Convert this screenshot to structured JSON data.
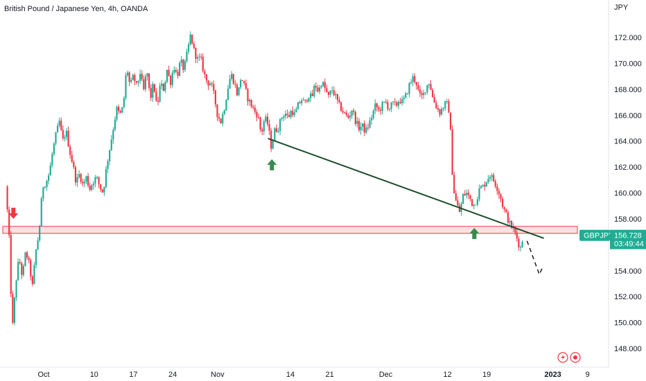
{
  "header": {
    "title": "British Pound / Japanese Yen, 4h, OANDA",
    "currency": "JPY"
  },
  "price_tag": {
    "symbol": "GBPJPY",
    "price": "156.728",
    "countdown": "03:49:44"
  },
  "icons": [
    "flash-icon",
    "record-icon"
  ],
  "colors": {
    "up": "#22ab94",
    "down": "#f23645",
    "trendline": "#1b4d2b",
    "zone_fill": "#f9c7cb",
    "zone_border": "#f23645",
    "arrow_up": "#3a8a4d",
    "arrow_down": "#f23645",
    "tag_bg": "#22ab94"
  },
  "chart_data": {
    "type": "candlestick",
    "title": "British Pound / Japanese Yen, 4h, OANDA",
    "y_unit": "JPY",
    "ylim": [
      147.0,
      173.5
    ],
    "y_ticks": [
      "148.000",
      "150.000",
      "152.000",
      "154.000",
      "156.000",
      "158.000",
      "160.000",
      "162.000",
      "164.000",
      "166.000",
      "168.000",
      "170.000",
      "172.000"
    ],
    "x_ticks": [
      "Oct",
      "10",
      "17",
      "24",
      "Nov",
      "14",
      "21",
      "Dec",
      "12",
      "19",
      "2023",
      "9"
    ],
    "x_tick_positions": [
      0.8,
      9.8,
      16.8,
      23.8,
      31.8,
      44.8,
      51.8,
      61.8,
      72.8,
      79.8,
      91.6,
      97.8
    ],
    "x_range": [
      -6.0,
      107.5
    ],
    "price_path": [
      [
        -6.0,
        160.5
      ],
      [
        -5.4,
        157.0
      ],
      [
        -4.8,
        149.3
      ],
      [
        -4.2,
        153.0
      ],
      [
        -3.6,
        155.0
      ],
      [
        -3.0,
        153.5
      ],
      [
        -2.4,
        155.5
      ],
      [
        -1.8,
        154.5
      ],
      [
        -1.2,
        152.8
      ],
      [
        -0.6,
        155.5
      ],
      [
        0.0,
        157.0
      ],
      [
        0.6,
        160.5
      ],
      [
        1.2,
        160.8
      ],
      [
        1.8,
        161.5
      ],
      [
        2.4,
        163.2
      ],
      [
        3.0,
        164.5
      ],
      [
        3.6,
        165.5
      ],
      [
        4.2,
        164.0
      ],
      [
        4.8,
        164.8
      ],
      [
        5.4,
        163.3
      ],
      [
        6.0,
        162.2
      ],
      [
        6.6,
        160.8
      ],
      [
        7.2,
        161.5
      ],
      [
        7.8,
        160.6
      ],
      [
        8.4,
        161.2
      ],
      [
        9.0,
        160.3
      ],
      [
        9.6,
        160.9
      ],
      [
        10.2,
        161.2
      ],
      [
        10.8,
        160.5
      ],
      [
        11.4,
        160.0
      ],
      [
        12.0,
        162.0
      ],
      [
        12.6,
        163.5
      ],
      [
        13.2,
        165.0
      ],
      [
        13.8,
        166.5
      ],
      [
        14.4,
        166.0
      ],
      [
        15.0,
        166.7
      ],
      [
        15.6,
        169.8
      ],
      [
        16.2,
        168.2
      ],
      [
        16.8,
        169.0
      ],
      [
        17.4,
        168.2
      ],
      [
        18.0,
        169.3
      ],
      [
        18.6,
        167.8
      ],
      [
        19.2,
        169.5
      ],
      [
        19.8,
        167.2
      ],
      [
        20.4,
        168.5
      ],
      [
        21.0,
        166.5
      ],
      [
        21.6,
        168.4
      ],
      [
        22.2,
        168.0
      ],
      [
        22.8,
        169.5
      ],
      [
        23.4,
        168.5
      ],
      [
        24.0,
        169.8
      ],
      [
        24.6,
        169.0
      ],
      [
        25.2,
        170.2
      ],
      [
        25.8,
        169.5
      ],
      [
        26.4,
        170.8
      ],
      [
        27.0,
        172.2
      ],
      [
        27.6,
        171.0
      ],
      [
        28.2,
        170.3
      ],
      [
        28.8,
        170.4
      ],
      [
        29.4,
        169.2
      ],
      [
        30.0,
        168.5
      ],
      [
        30.6,
        168.5
      ],
      [
        31.2,
        167.5
      ],
      [
        31.8,
        166.0
      ],
      [
        32.4,
        165.5
      ],
      [
        33.0,
        166.5
      ],
      [
        33.6,
        168.0
      ],
      [
        34.2,
        169.2
      ],
      [
        34.8,
        168.5
      ],
      [
        35.4,
        167.5
      ],
      [
        36.0,
        169.0
      ],
      [
        36.6,
        168.2
      ],
      [
        37.2,
        167.3
      ],
      [
        37.8,
        166.8
      ],
      [
        38.4,
        166.3
      ],
      [
        39.0,
        166.0
      ],
      [
        39.6,
        164.5
      ],
      [
        40.2,
        165.8
      ],
      [
        40.8,
        165.3
      ],
      [
        41.4,
        163.5
      ],
      [
        42.0,
        164.8
      ],
      [
        42.6,
        165.0
      ],
      [
        43.2,
        165.8
      ],
      [
        43.8,
        166.2
      ],
      [
        44.4,
        165.8
      ],
      [
        45.0,
        166.4
      ],
      [
        45.6,
        166.0
      ],
      [
        46.2,
        166.8
      ],
      [
        46.8,
        167.2
      ],
      [
        47.4,
        166.9
      ],
      [
        48.0,
        167.6
      ],
      [
        48.6,
        167.3
      ],
      [
        49.2,
        168.4
      ],
      [
        49.8,
        167.8
      ],
      [
        50.4,
        168.6
      ],
      [
        51.0,
        168.0
      ],
      [
        51.6,
        167.4
      ],
      [
        52.2,
        168.0
      ],
      [
        52.8,
        167.5
      ],
      [
        53.4,
        166.8
      ],
      [
        54.0,
        166.4
      ],
      [
        54.6,
        166.0
      ],
      [
        55.2,
        165.8
      ],
      [
        55.8,
        166.5
      ],
      [
        56.4,
        165.6
      ],
      [
        57.0,
        165.0
      ],
      [
        57.6,
        165.2
      ],
      [
        58.2,
        164.7
      ],
      [
        58.8,
        165.3
      ],
      [
        59.4,
        166.0
      ],
      [
        60.0,
        166.8
      ],
      [
        60.6,
        166.3
      ],
      [
        61.2,
        166.8
      ],
      [
        61.8,
        167.0
      ],
      [
        62.4,
        166.5
      ],
      [
        63.0,
        166.9
      ],
      [
        63.6,
        166.7
      ],
      [
        64.2,
        167.2
      ],
      [
        64.8,
        167.0
      ],
      [
        65.4,
        167.5
      ],
      [
        66.0,
        168.3
      ],
      [
        66.6,
        168.9
      ],
      [
        67.2,
        168.6
      ],
      [
        67.8,
        167.5
      ],
      [
        68.4,
        167.4
      ],
      [
        69.0,
        168.2
      ],
      [
        69.6,
        168.6
      ],
      [
        70.2,
        167.3
      ],
      [
        70.8,
        166.7
      ],
      [
        71.4,
        166.2
      ],
      [
        72.0,
        166.6
      ],
      [
        72.6,
        167.0
      ],
      [
        73.2,
        166.2
      ],
      [
        73.8,
        160.5
      ],
      [
        74.4,
        159.2
      ],
      [
        75.0,
        158.5
      ],
      [
        75.6,
        159.8
      ],
      [
        76.2,
        160.0
      ],
      [
        76.8,
        159.6
      ],
      [
        77.4,
        159.0
      ],
      [
        78.0,
        159.5
      ],
      [
        78.6,
        160.4
      ],
      [
        79.2,
        160.5
      ],
      [
        79.8,
        161.0
      ],
      [
        80.4,
        161.4
      ],
      [
        81.0,
        161.0
      ],
      [
        81.6,
        160.5
      ],
      [
        82.2,
        159.8
      ],
      [
        82.8,
        158.8
      ],
      [
        83.4,
        158.2
      ],
      [
        84.0,
        157.5
      ],
      [
        84.6,
        157.2
      ],
      [
        85.2,
        156.5
      ],
      [
        85.8,
        155.7
      ],
      [
        86.4,
        156.8
      ]
    ],
    "trendline": [
      [
        40.8,
        164.2
      ],
      [
        90.0,
        156.5
      ]
    ],
    "projection": [
      [
        87.0,
        156.3
      ],
      [
        89.2,
        153.7
      ],
      [
        89.8,
        154.3
      ]
    ],
    "support_zone": [
      157.0,
      157.3
    ],
    "arrows": [
      {
        "type": "down",
        "x": -4.6,
        "price": 158.0
      },
      {
        "type": "up",
        "x": 41.5,
        "price": 162.6
      },
      {
        "type": "up",
        "x": 77.6,
        "price": 157.3
      }
    ],
    "current_price": 156.728
  }
}
